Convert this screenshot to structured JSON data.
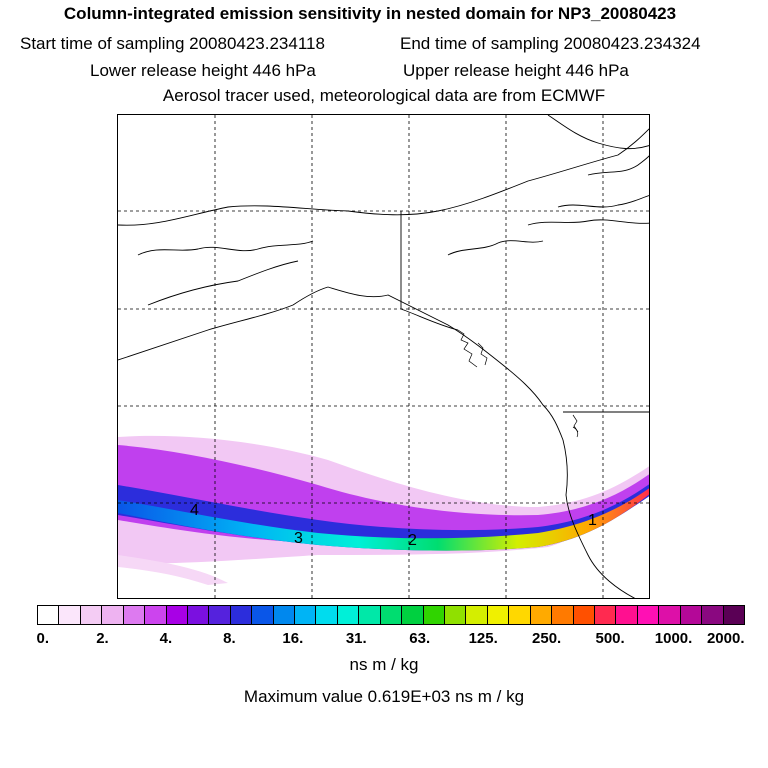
{
  "header": {
    "title": "Column-integrated emission sensitivity in nested domain for NP3_20080423",
    "start_time": "Start time of sampling 20080423.234118",
    "end_time": "End time of sampling 20080423.234324",
    "lower_release": "Lower release height  446 hPa",
    "upper_release": "Upper release height  446 hPa",
    "info": "Aerosol tracer used, meteorological data are from ECMWF"
  },
  "map": {
    "labels": [
      "1",
      "2",
      "3",
      "4"
    ]
  },
  "colorbar": {
    "colors": [
      "#ffffff",
      "#fbe6fb",
      "#f4ccf4",
      "#eeb3f1",
      "#dd7af0",
      "#cc44ee",
      "#a800e6",
      "#7b10e0",
      "#5522dd",
      "#2c2ddc",
      "#0a56e8",
      "#0088ee",
      "#00b4f5",
      "#00dcee",
      "#00f0d8",
      "#00e8a8",
      "#00dd70",
      "#00d040",
      "#30d400",
      "#90e000",
      "#d4ee00",
      "#f0f000",
      "#ffd800",
      "#ffaa00",
      "#ff7a00",
      "#ff5000",
      "#ff2a50",
      "#ff1090",
      "#ff10b4",
      "#dd10a8",
      "#b40898",
      "#8a0880",
      "#5a0055"
    ],
    "tick_labels": [
      "0.",
      "2.",
      "4.",
      "8.",
      "16.",
      "31.",
      "63.",
      "125.",
      "250.",
      "500.",
      "1000.",
      "2000."
    ],
    "units": "ns m / kg"
  },
  "footer": {
    "max_value": "Maximum value  0.619E+03 ns m / kg"
  }
}
